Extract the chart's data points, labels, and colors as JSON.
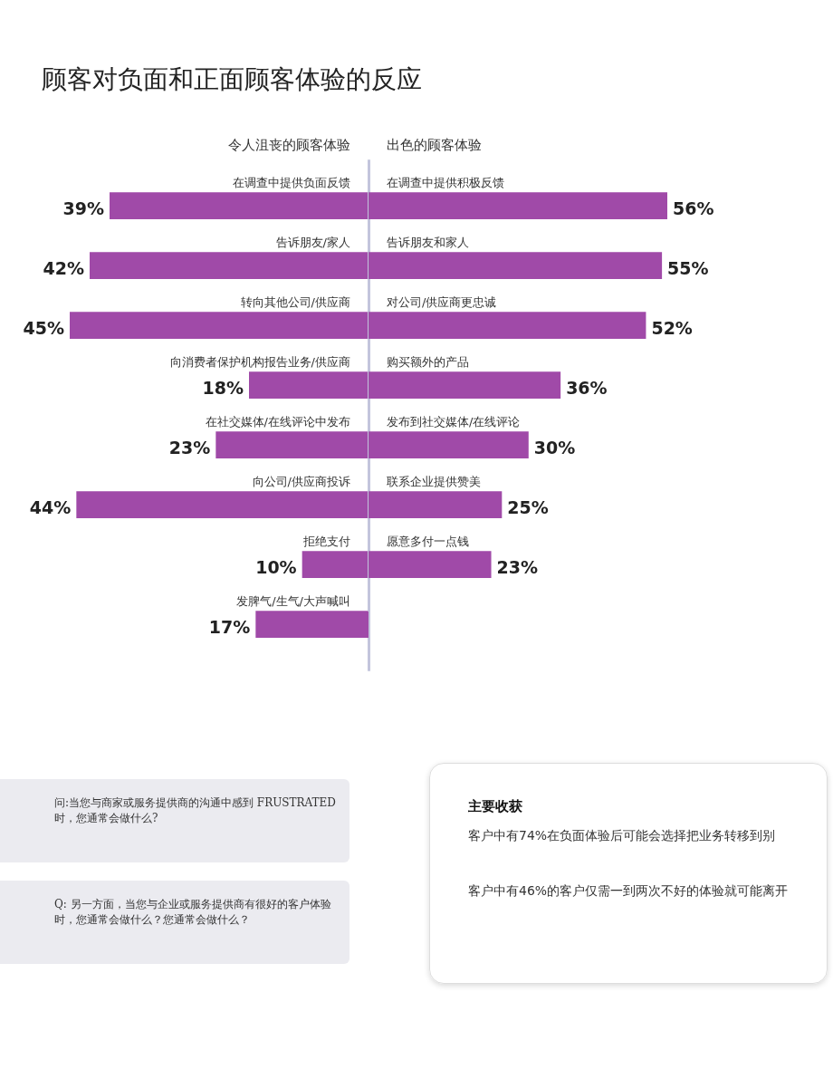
{
  "chart_data": [
    {
      "type": "bar",
      "orientation": "horizontal",
      "title": "顾客对负面和正面顾客体验的反应",
      "subtitle": "令人沮丧的顾客体验",
      "categories": [
        "在调查中提供负面反馈",
        "告诉朋友/家人",
        "转向其他公司/供应商",
        "向消费者保护机构报告业务/供应商",
        "在社交媒体/在线评论中发布",
        "向公司/供应商投诉",
        "拒绝支付",
        "发脾气/生气/大声喊叫"
      ],
      "values": [
        39,
        42,
        45,
        18,
        23,
        44,
        10,
        17
      ],
      "color": "#a04aa8",
      "value_labels": [
        "39%",
        "42%",
        "45%",
        "18%",
        "23%",
        "44%",
        "10%",
        "17%"
      ],
      "tick_labels": "y",
      "annotations": [
        "问:当您与商家或服务提供商的沟通中感到 FRUSTRATED 时，您通常会做什么?",
        "Q: 另一方面，当您与企业或服务提供商有很好的客户体验时，您通常会做什么？您通常会做什么？"
      ]
    },
    {
      "type": "bar",
      "orientation": "horizontal",
      "subtitle": "出色的顾客体验",
      "categories": [
        "在调查中提供积极反馈",
        "告诉朋友和家人",
        "对公司/供应商更忠诚",
        "购买额外的产品",
        "发布到社交媒体/在线评论",
        "联系企业提供赞美",
        "愿意多付一点钱"
      ],
      "values": [
        56,
        55,
        52,
        36,
        30,
        25,
        23
      ],
      "color": "#a04aa8",
      "value_labels": [
        "56%",
        "55%",
        "52%",
        "36%",
        "30%",
        "25%",
        "23%"
      ],
      "tick_labels": "y",
      "annotations": [
        "主要收获",
        "客户中有74%在负面体验后可能会选择把业务转移到别",
        "客户中有46%的客户仅需一到两次不好的体验就可能离开"
      ]
    }
  ]
}
